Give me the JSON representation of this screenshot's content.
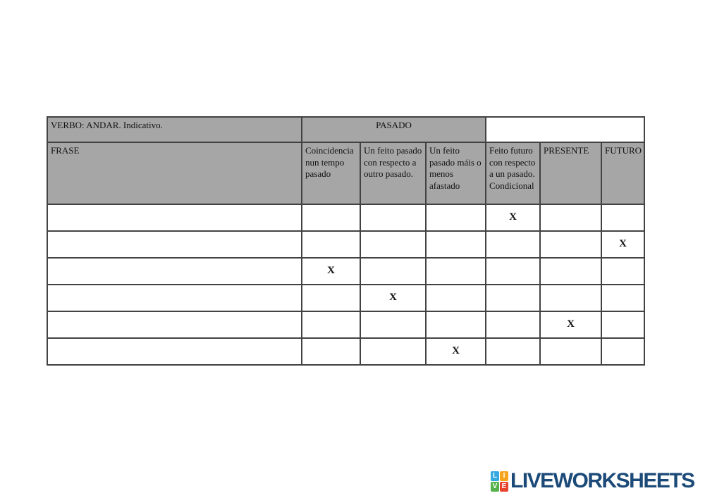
{
  "page": {
    "background": "#ffffff"
  },
  "colors": {
    "header_gray": "#a6a6a6",
    "table_border": "#424242",
    "cell_text": "#111111",
    "logo_blue": "#1b4a78"
  },
  "table": {
    "verbo_title": "VERBO: ANDAR. Indicativo.",
    "pasado_label": "PASADO",
    "columns": [
      "FRASE",
      "Coincidencia nun tempo pasado",
      "Un feito pasado con respecto a outro pasado.",
      "Un feito pasado máis o menos afastado",
      "Feito futuro con respecto a un pasado. Condicional",
      "PRESENTE",
      "FUTURO"
    ],
    "mark_symbol": "X",
    "rows": [
      {
        "cells": [
          "",
          "",
          "",
          "",
          "X",
          "",
          ""
        ]
      },
      {
        "cells": [
          "",
          "",
          "",
          "",
          "",
          "",
          "X"
        ]
      },
      {
        "cells": [
          "",
          "X",
          "",
          "",
          "",
          "",
          ""
        ]
      },
      {
        "cells": [
          "",
          "",
          "X",
          "",
          "",
          "",
          ""
        ]
      },
      {
        "cells": [
          "",
          "",
          "",
          "",
          "",
          "X",
          ""
        ]
      },
      {
        "cells": [
          "",
          "",
          "",
          "X",
          "",
          "",
          ""
        ]
      }
    ]
  },
  "logo": {
    "text": "LIVEWORKSHEETS",
    "tiles": [
      {
        "letter": "L",
        "color": "#35a8e0"
      },
      {
        "letter": "I",
        "color": "#f6a41d"
      },
      {
        "letter": "V",
        "color": "#55b24b"
      },
      {
        "letter": "E",
        "color": "#e8432e"
      }
    ]
  }
}
